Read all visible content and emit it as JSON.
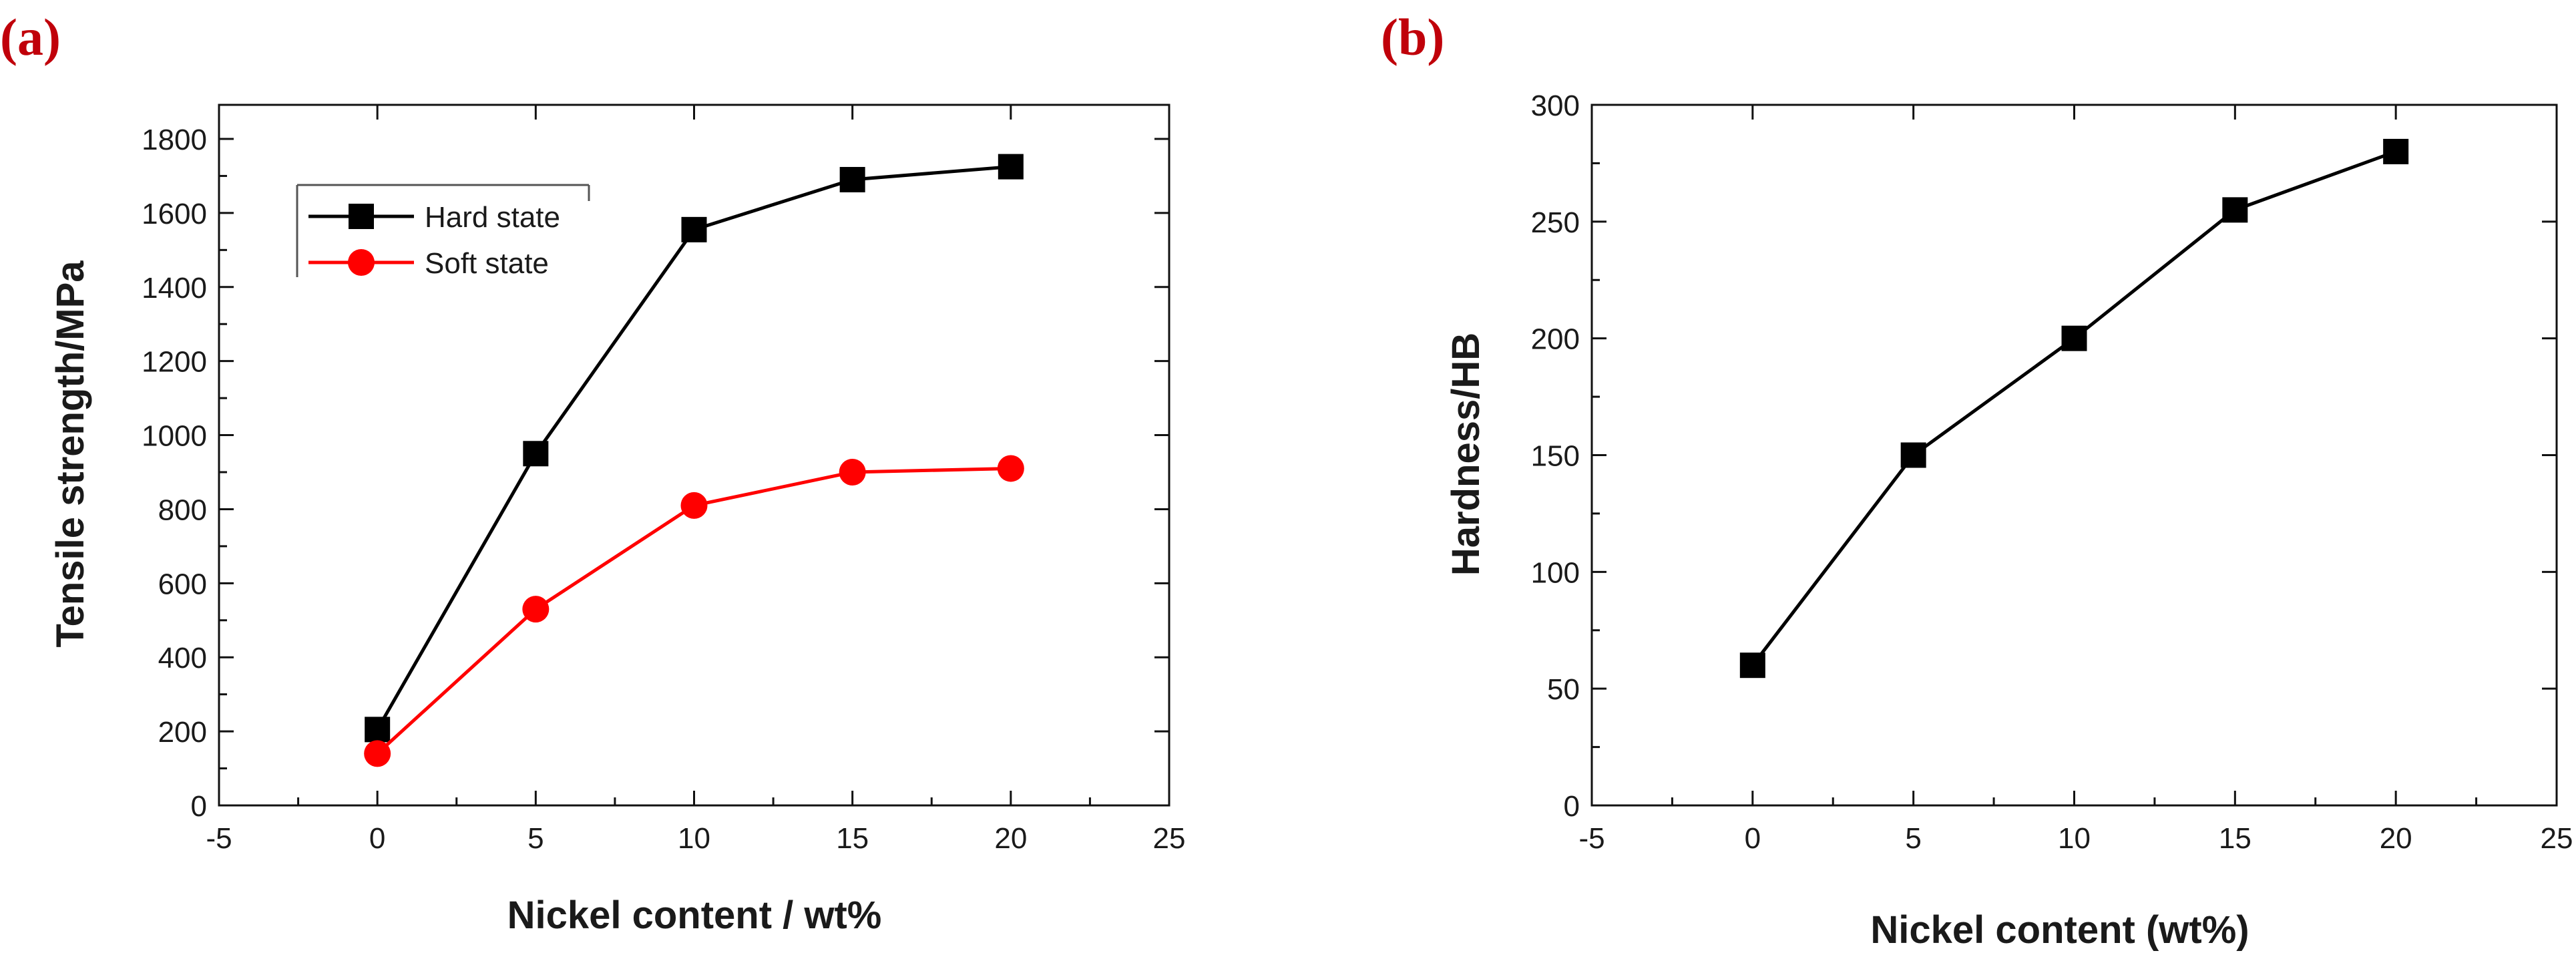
{
  "colors": {
    "panel_label": "#c0000a",
    "axis": "#111111",
    "text": "#1a1a1a"
  },
  "chart_data": [
    {
      "panel_label": "(a)",
      "type": "line",
      "title": "",
      "xlabel": "Nickel content / wt%",
      "ylabel": "Tensile strength/MPa",
      "xlim": [
        -5,
        25
      ],
      "ylim": [
        0,
        1900
      ],
      "x_ticks": [
        -5,
        0,
        5,
        10,
        15,
        20,
        25
      ],
      "y_ticks": [
        0,
        200,
        400,
        600,
        800,
        1000,
        1200,
        1400,
        1600,
        1800
      ],
      "x": [
        0,
        5,
        10,
        15,
        20
      ],
      "legend_position": "top-left",
      "series": [
        {
          "name": "Hard state",
          "values": [
            205,
            950,
            1555,
            1690,
            1725
          ],
          "color": "#000000",
          "marker": "square"
        },
        {
          "name": "Soft state",
          "values": [
            140,
            530,
            810,
            900,
            910
          ],
          "color": "#ff0000",
          "marker": "circle"
        }
      ]
    },
    {
      "panel_label": "(b)",
      "type": "line",
      "title": "",
      "xlabel": "Nickel content (wt%)",
      "ylabel": "Hardness/HB",
      "xlim": [
        -5,
        25
      ],
      "ylim": [
        0,
        300
      ],
      "x_ticks": [
        -5,
        0,
        5,
        10,
        15,
        20,
        25
      ],
      "y_ticks": [
        0,
        50,
        100,
        150,
        200,
        250,
        300
      ],
      "x": [
        0,
        5,
        10,
        15,
        20
      ],
      "legend_position": "none",
      "series": [
        {
          "name": "Hardness",
          "values": [
            60,
            150,
            200,
            255,
            280
          ],
          "color": "#000000",
          "marker": "square"
        }
      ]
    }
  ]
}
